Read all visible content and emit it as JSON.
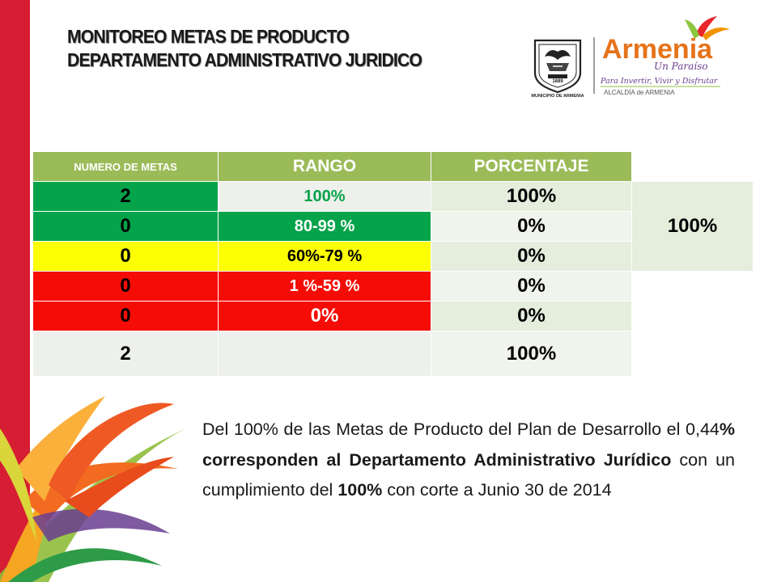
{
  "slide": {
    "title_line1": "MONITOREO METAS DE PRODUCTO",
    "title_line2": "DEPARTAMENTO ADMINISTRATIVO  JURIDICO"
  },
  "logos": {
    "municipio": {
      "year": "1889",
      "name": "MUNICIPIO DE ARMENIA"
    },
    "armenia": {
      "brand": "Armenia",
      "tagline": "Un Paraíso",
      "slogan": "Para Invertir, Vivir y Disfrutar",
      "footer": "ALCALDÍA  de  ARMENIA"
    }
  },
  "table": {
    "headers": [
      "NUMERO DE METAS",
      "RANGO",
      "PORCENTAJE"
    ],
    "rows": [
      {
        "count": "2",
        "range": "100%",
        "percent": "100%",
        "status": "green"
      },
      {
        "count": "0",
        "range": "80-99  %",
        "percent": "0%",
        "status": "green"
      },
      {
        "count": "0",
        "range": "60%-79 %",
        "percent": "0%",
        "status": "yellow"
      },
      {
        "count": "0",
        "range": "1  %-59 %",
        "percent": "0%",
        "status": "red"
      },
      {
        "count": "0",
        "range": "0%",
        "percent": "0%",
        "status": "red"
      },
      {
        "count": "2",
        "range": "",
        "percent": "100%",
        "status": "total"
      }
    ],
    "summary": "100%"
  },
  "paragraph": {
    "p1": "Del 100% de las Metas de Producto del Plan de Desarrollo el 0,44",
    "p2": "% corresponden al Departamento Administrativo Jurídico",
    "p3": " con un cumplimiento del  ",
    "p4": "100%",
    "p5": " con corte a Junio 30 de 2014"
  },
  "colors": {
    "band": "#d71d34",
    "header": "#9bbb59",
    "green": "#05a34a",
    "yellow": "#fdfd03",
    "red": "#f50c07"
  }
}
